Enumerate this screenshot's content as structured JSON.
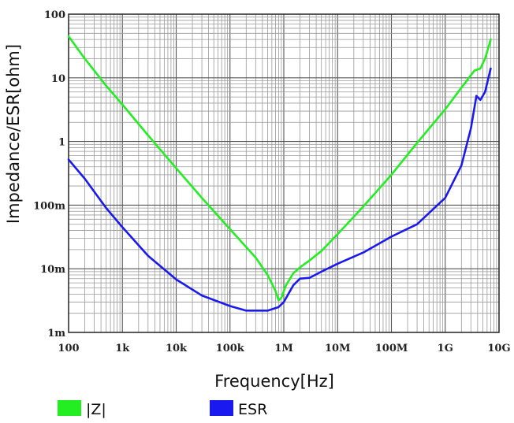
{
  "chart_data": {
    "type": "line",
    "xlabel": "Frequency[Hz]",
    "ylabel": "Impedance/ESR[ohm]",
    "x_scale": "log",
    "y_scale": "log",
    "xlim": [
      100,
      10000000000
    ],
    "ylim": [
      0.001,
      100
    ],
    "grid": true,
    "legend_position": "bottom",
    "x_ticks": [
      {
        "value": 100,
        "label": "100"
      },
      {
        "value": 1000,
        "label": "1k"
      },
      {
        "value": 10000,
        "label": "10k"
      },
      {
        "value": 100000,
        "label": "100k"
      },
      {
        "value": 1000000,
        "label": "1M"
      },
      {
        "value": 10000000,
        "label": "10M"
      },
      {
        "value": 100000000,
        "label": "100M"
      },
      {
        "value": 1000000000,
        "label": "1G"
      },
      {
        "value": 10000000000,
        "label": "10G"
      }
    ],
    "y_ticks": [
      {
        "value": 0.001,
        "label": "1m"
      },
      {
        "value": 0.01,
        "label": "10m"
      },
      {
        "value": 0.1,
        "label": "100m"
      },
      {
        "value": 1,
        "label": "1"
      },
      {
        "value": 10,
        "label": "10"
      },
      {
        "value": 100,
        "label": "100"
      }
    ],
    "series": [
      {
        "name": "|Z|",
        "color": "#22ee22",
        "points": [
          [
            100,
            45
          ],
          [
            200,
            20
          ],
          [
            500,
            7.5
          ],
          [
            1000,
            3.8
          ],
          [
            3000,
            1.25
          ],
          [
            10000,
            0.38
          ],
          [
            30000,
            0.13
          ],
          [
            100000,
            0.042
          ],
          [
            300000,
            0.015
          ],
          [
            500000,
            0.008
          ],
          [
            700000,
            0.0045
          ],
          [
            800000,
            0.0032
          ],
          [
            900000,
            0.0035
          ],
          [
            1100000,
            0.0055
          ],
          [
            1500000,
            0.0085
          ],
          [
            2000000,
            0.0105
          ],
          [
            3000000,
            0.0135
          ],
          [
            5000000,
            0.019
          ],
          [
            10000000,
            0.035
          ],
          [
            30000000,
            0.095
          ],
          [
            100000000,
            0.3
          ],
          [
            300000000,
            0.95
          ],
          [
            1000000000,
            3.2
          ],
          [
            2000000000,
            7
          ],
          [
            3500000000,
            13
          ],
          [
            4500000000,
            14
          ],
          [
            5500000000,
            20
          ],
          [
            7000000000,
            40
          ]
        ]
      },
      {
        "name": "ESR",
        "color": "#1a1aee",
        "points": [
          [
            100,
            0.52
          ],
          [
            200,
            0.26
          ],
          [
            500,
            0.09
          ],
          [
            1000,
            0.045
          ],
          [
            3000,
            0.016
          ],
          [
            10000,
            0.0068
          ],
          [
            30000,
            0.0038
          ],
          [
            100000,
            0.0026
          ],
          [
            200000,
            0.0022
          ],
          [
            500000,
            0.0022
          ],
          [
            800000,
            0.0025
          ],
          [
            1000000,
            0.003
          ],
          [
            1500000,
            0.0055
          ],
          [
            2000000,
            0.007
          ],
          [
            3000000,
            0.0072
          ],
          [
            5000000,
            0.009
          ],
          [
            10000000,
            0.012
          ],
          [
            30000000,
            0.018
          ],
          [
            100000000,
            0.032
          ],
          [
            300000000,
            0.05
          ],
          [
            1000000000,
            0.13
          ],
          [
            2000000000,
            0.42
          ],
          [
            3000000000,
            1.6
          ],
          [
            3800000000,
            5.2
          ],
          [
            4500000000,
            4.5
          ],
          [
            5500000000,
            6
          ],
          [
            7000000000,
            14
          ]
        ]
      }
    ]
  }
}
